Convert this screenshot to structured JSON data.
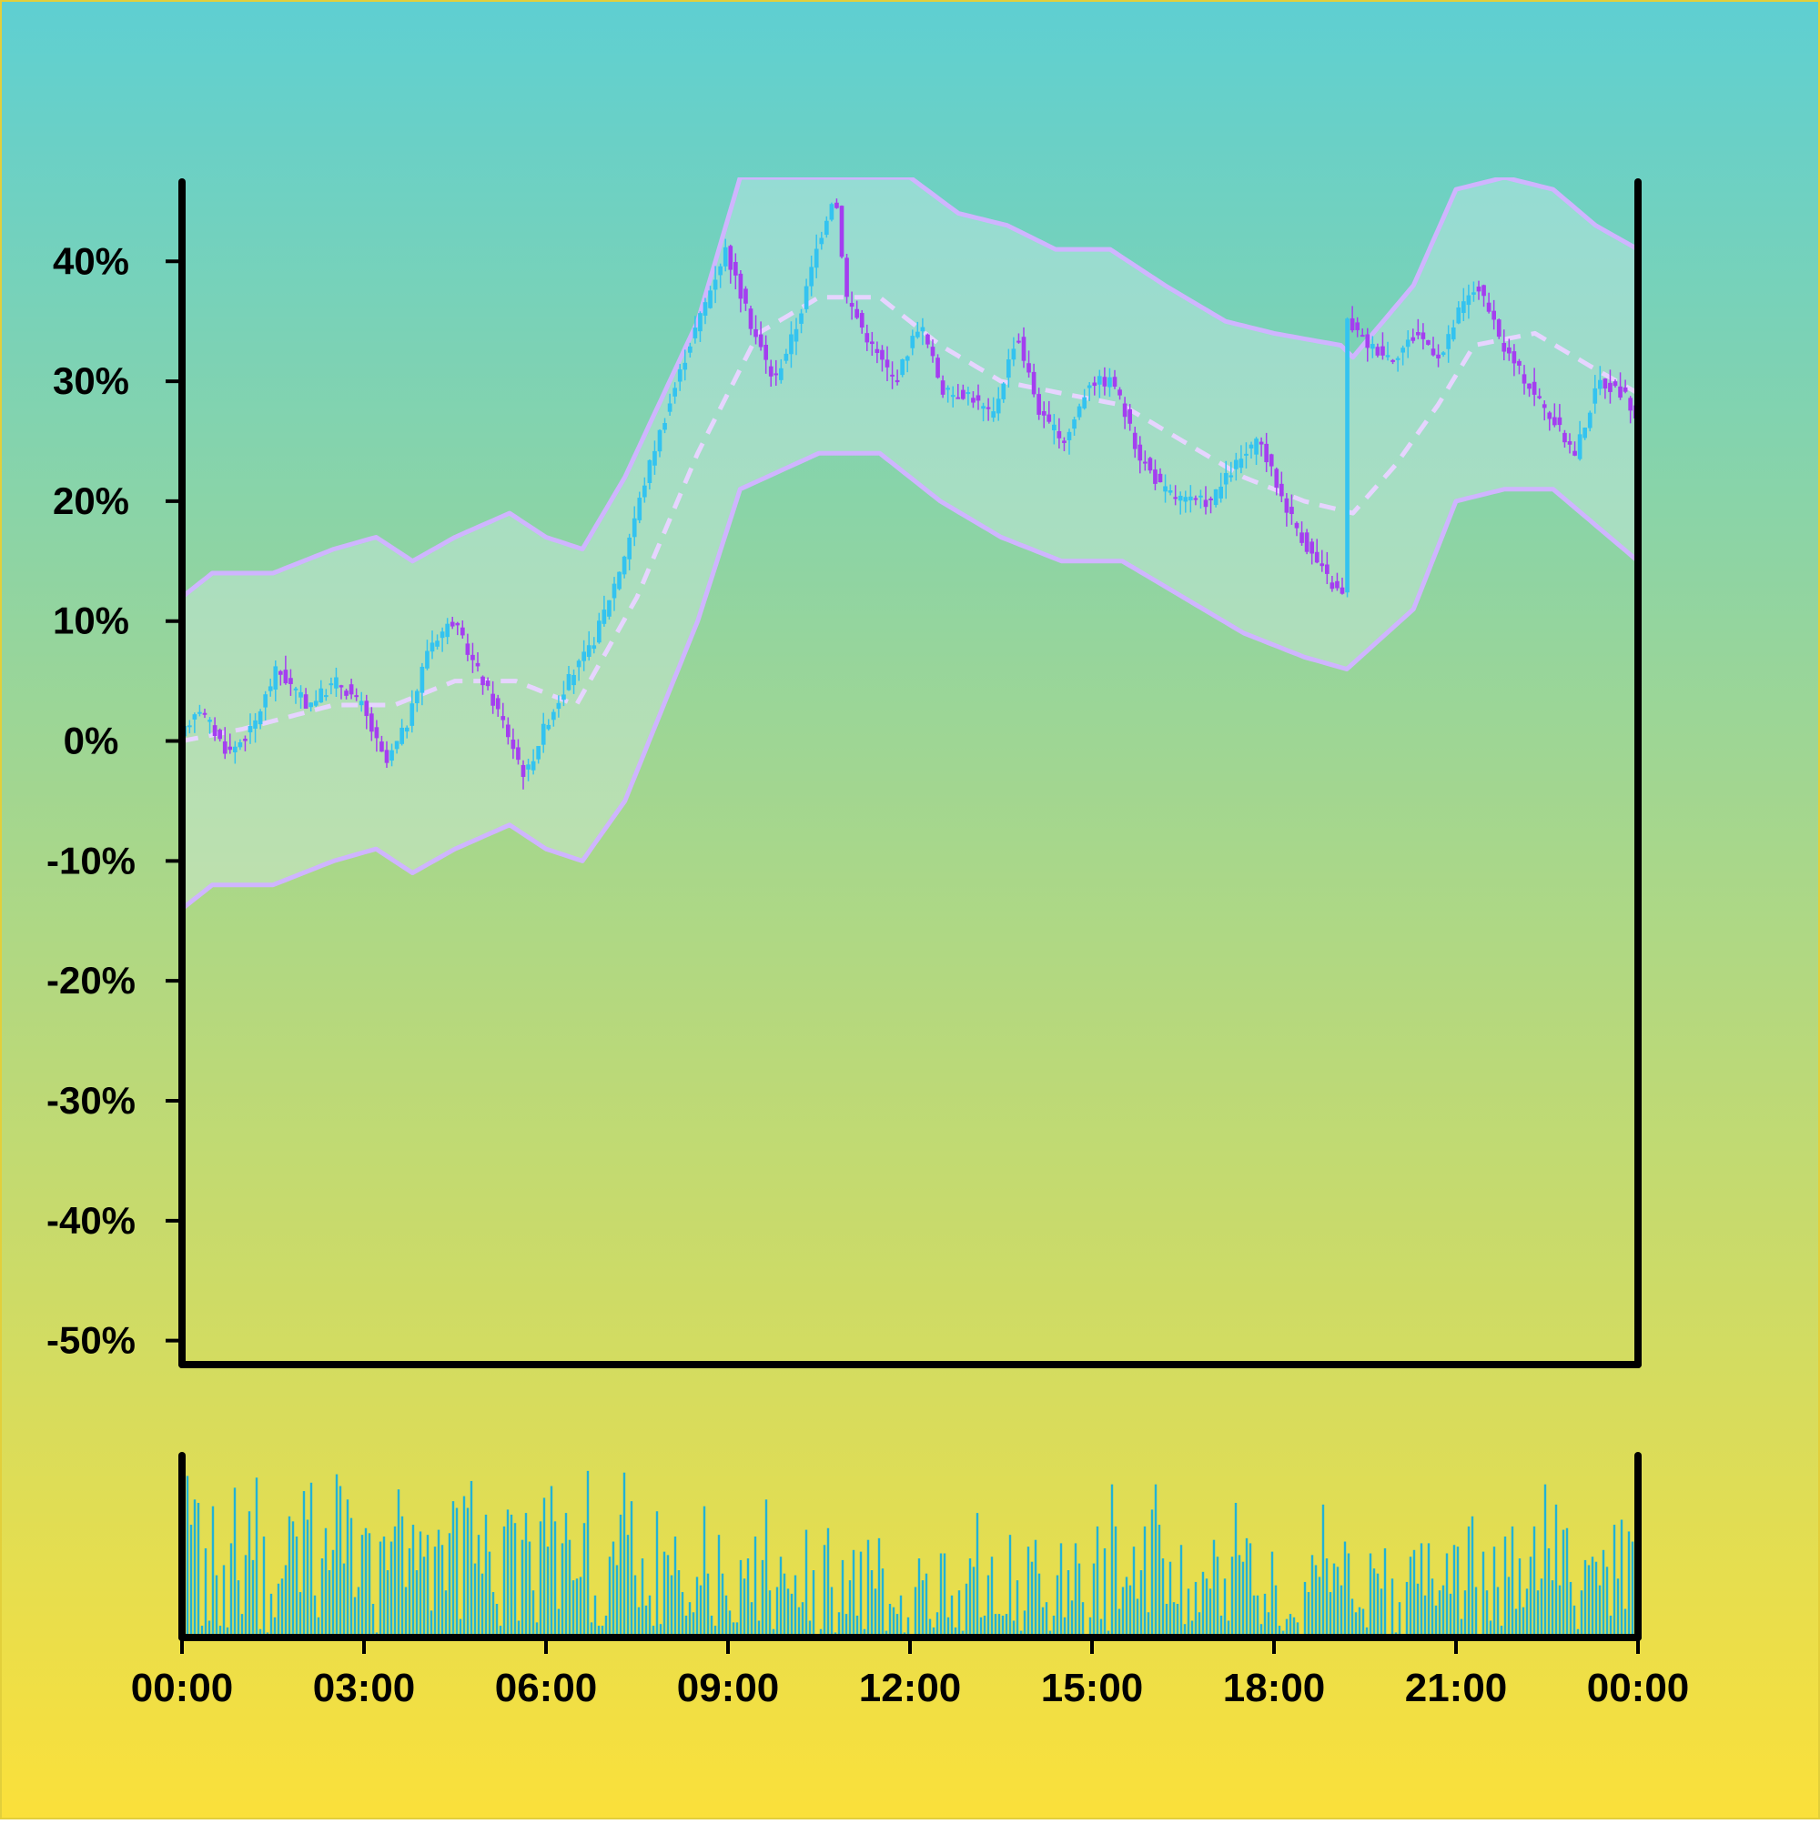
{
  "colors": {
    "background_top": "#5ecfd2",
    "background_bottom": "#fbe03a",
    "up_candle": "#33c3f0",
    "down_candle": "#a43ef0",
    "band_line": "#cfb5ff",
    "band_fill": "#dff1f4",
    "middle_line": "#e6d4ff",
    "volume_bar": "#21b2d6",
    "axis": "#000000",
    "border": "#e2cf3b"
  },
  "chart_data": {
    "type": "candlestick",
    "title": "",
    "xlabel": "",
    "ylabel": "",
    "ylim": [
      -0.52,
      0.47
    ],
    "x_range": [
      "00:00",
      "00:00 (+1 day)"
    ],
    "y_ticks": [
      {
        "value": 0.4,
        "label": "40%"
      },
      {
        "value": 0.3,
        "label": "30%"
      },
      {
        "value": 0.2,
        "label": "20%"
      },
      {
        "value": 0.1,
        "label": "10%"
      },
      {
        "value": 0.0,
        "label": "0%"
      },
      {
        "value": -0.1,
        "label": "-10%"
      },
      {
        "value": -0.2,
        "label": "-20%"
      },
      {
        "value": -0.3,
        "label": "-30%"
      },
      {
        "value": -0.4,
        "label": "-40%"
      },
      {
        "value": -0.5,
        "label": "-50%"
      }
    ],
    "x_ticks": [
      {
        "hour": 0,
        "label": "00:00"
      },
      {
        "hour": 3,
        "label": "03:00"
      },
      {
        "hour": 6,
        "label": "06:00"
      },
      {
        "hour": 9,
        "label": "09:00"
      },
      {
        "hour": 12,
        "label": "12:00"
      },
      {
        "hour": 15,
        "label": "15:00"
      },
      {
        "hour": 18,
        "label": "18:00"
      },
      {
        "hour": 21,
        "label": "21:00"
      },
      {
        "hour": 24,
        "label": "00:00"
      }
    ],
    "price_key_points": [
      [
        0.0,
        0.0
      ],
      [
        0.3,
        0.03
      ],
      [
        0.8,
        -0.01
      ],
      [
        1.2,
        0.01
      ],
      [
        1.6,
        0.06
      ],
      [
        2.1,
        0.03
      ],
      [
        2.6,
        0.05
      ],
      [
        3.0,
        0.03
      ],
      [
        3.4,
        -0.02
      ],
      [
        3.8,
        0.02
      ],
      [
        4.1,
        0.08
      ],
      [
        4.5,
        0.1
      ],
      [
        4.9,
        0.06
      ],
      [
        5.3,
        0.02
      ],
      [
        5.7,
        -0.03
      ],
      [
        6.0,
        0.01
      ],
      [
        6.4,
        0.05
      ],
      [
        6.8,
        0.08
      ],
      [
        7.3,
        0.15
      ],
      [
        7.8,
        0.24
      ],
      [
        8.4,
        0.33
      ],
      [
        9.0,
        0.41
      ],
      [
        9.4,
        0.35
      ],
      [
        9.8,
        0.3
      ],
      [
        10.2,
        0.35
      ],
      [
        10.5,
        0.41
      ],
      [
        10.8,
        0.46
      ],
      [
        11.0,
        0.37
      ],
      [
        11.4,
        0.33
      ],
      [
        11.8,
        0.3
      ],
      [
        12.2,
        0.35
      ],
      [
        12.6,
        0.29
      ],
      [
        13.0,
        0.29
      ],
      [
        13.4,
        0.27
      ],
      [
        13.8,
        0.34
      ],
      [
        14.2,
        0.27
      ],
      [
        14.6,
        0.25
      ],
      [
        15.0,
        0.3
      ],
      [
        15.4,
        0.3
      ],
      [
        15.8,
        0.24
      ],
      [
        16.2,
        0.21
      ],
      [
        16.6,
        0.2
      ],
      [
        17.0,
        0.2
      ],
      [
        17.4,
        0.23
      ],
      [
        17.8,
        0.25
      ],
      [
        18.2,
        0.2
      ],
      [
        18.6,
        0.16
      ],
      [
        19.0,
        0.13
      ],
      [
        19.2,
        0.12
      ],
      [
        19.25,
        0.35
      ],
      [
        19.6,
        0.33
      ],
      [
        20.0,
        0.32
      ],
      [
        20.4,
        0.34
      ],
      [
        20.8,
        0.32
      ],
      [
        21.1,
        0.36
      ],
      [
        21.4,
        0.38
      ],
      [
        21.8,
        0.33
      ],
      [
        22.2,
        0.3
      ],
      [
        22.6,
        0.27
      ],
      [
        23.0,
        0.24
      ],
      [
        23.4,
        0.3
      ],
      [
        23.8,
        0.29
      ],
      [
        24.0,
        0.27
      ]
    ],
    "bollinger": {
      "middle_key_points": [
        [
          0.0,
          0.0
        ],
        [
          1.0,
          0.01
        ],
        [
          2.5,
          0.03
        ],
        [
          3.5,
          0.03
        ],
        [
          4.5,
          0.05
        ],
        [
          5.5,
          0.05
        ],
        [
          6.5,
          0.03
        ],
        [
          7.5,
          0.12
        ],
        [
          8.5,
          0.24
        ],
        [
          9.5,
          0.34
        ],
        [
          10.5,
          0.37
        ],
        [
          11.5,
          0.37
        ],
        [
          12.5,
          0.33
        ],
        [
          13.5,
          0.3
        ],
        [
          14.5,
          0.29
        ],
        [
          15.5,
          0.28
        ],
        [
          16.5,
          0.25
        ],
        [
          17.5,
          0.22
        ],
        [
          18.5,
          0.2
        ],
        [
          19.3,
          0.19
        ],
        [
          20.0,
          0.23
        ],
        [
          20.7,
          0.28
        ],
        [
          21.3,
          0.33
        ],
        [
          22.3,
          0.34
        ],
        [
          23.3,
          0.31
        ],
        [
          24.0,
          0.29
        ]
      ],
      "upper_key_points": [
        [
          0.0,
          0.12
        ],
        [
          0.5,
          0.14
        ],
        [
          1.5,
          0.14
        ],
        [
          2.5,
          0.16
        ],
        [
          3.2,
          0.17
        ],
        [
          3.8,
          0.15
        ],
        [
          4.5,
          0.17
        ],
        [
          5.4,
          0.19
        ],
        [
          6.0,
          0.17
        ],
        [
          6.6,
          0.16
        ],
        [
          7.3,
          0.22
        ],
        [
          8.5,
          0.35
        ],
        [
          9.2,
          0.47
        ],
        [
          10.5,
          0.47
        ],
        [
          12.0,
          0.47
        ],
        [
          12.8,
          0.44
        ],
        [
          13.6,
          0.43
        ],
        [
          14.4,
          0.41
        ],
        [
          15.3,
          0.41
        ],
        [
          16.2,
          0.38
        ],
        [
          17.2,
          0.35
        ],
        [
          18.0,
          0.34
        ],
        [
          19.1,
          0.33
        ],
        [
          19.3,
          0.32
        ],
        [
          20.3,
          0.38
        ],
        [
          21.0,
          0.46
        ],
        [
          21.8,
          0.47
        ],
        [
          22.6,
          0.46
        ],
        [
          23.3,
          0.43
        ],
        [
          24.0,
          0.41
        ]
      ],
      "lower_key_points": [
        [
          0.0,
          -0.14
        ],
        [
          0.5,
          -0.12
        ],
        [
          1.5,
          -0.12
        ],
        [
          2.5,
          -0.1
        ],
        [
          3.2,
          -0.09
        ],
        [
          3.8,
          -0.11
        ],
        [
          4.5,
          -0.09
        ],
        [
          5.4,
          -0.07
        ],
        [
          6.0,
          -0.09
        ],
        [
          6.6,
          -0.1
        ],
        [
          7.3,
          -0.05
        ],
        [
          8.5,
          0.1
        ],
        [
          9.2,
          0.21
        ],
        [
          10.5,
          0.24
        ],
        [
          11.5,
          0.24
        ],
        [
          12.5,
          0.2
        ],
        [
          13.5,
          0.17
        ],
        [
          14.5,
          0.15
        ],
        [
          15.5,
          0.15
        ],
        [
          16.5,
          0.12
        ],
        [
          17.5,
          0.09
        ],
        [
          18.5,
          0.07
        ],
        [
          19.2,
          0.06
        ],
        [
          20.3,
          0.11
        ],
        [
          21.0,
          0.2
        ],
        [
          21.8,
          0.21
        ],
        [
          22.6,
          0.21
        ],
        [
          23.3,
          0.18
        ],
        [
          24.0,
          0.15
        ]
      ]
    },
    "volume": {
      "values": [
        0.21,
        0.96,
        0.67,
        0.82,
        0.8,
        0.07,
        0.53,
        0.1,
        0.78,
        0.37,
        0.07,
        0.43,
        0.06,
        0.56,
        0.89,
        0.34,
        0.14,
        0.49,
        0.75,
        0.46,
        0.95,
        0.05,
        0.6,
        0.03,
        0.26,
        0.12,
        0.32,
        0.35,
        0.43,
        0.72,
        0.69,
        0.6,
        0.27,
        0.87,
        0.7,
        0.92,
        0.25,
        0.12,
        0.47,
        0.65,
        0.4,
        0.52,
        0.97,
        0.9,
        0.44,
        0.82,
        0.71,
        0.24,
        0.3,
        0.61,
        0.65,
        0.62,
        0.2,
        0.03,
        0.57,
        0.6,
        0.4,
        0.57,
        0.66,
        0.88,
        0.72,
        0.3,
        0.53,
        0.67,
        0.4,
        0.63,
        0.48,
        0.61,
        0.16,
        0.54,
        0.64,
        0.55,
        0.28,
        0.62,
        0.81,
        0.77,
        0.11,
        0.84,
        0.77,
        0.93,
        0.44,
        0.61,
        0.38,
        0.73,
        0.51,
        0.27,
        0.2,
        0.07,
        0.66,
        0.76,
        0.73,
        0.68,
        0.1,
        0.58,
        0.74,
        0.57,
        0.28,
        0.09,
        0.69,
        0.83,
        0.54,
        0.9,
        0.69,
        0.17,
        0.56,
        0.74,
        0.58,
        0.34,
        0.35,
        0.36,
        0.68,
        0.99,
        0.09,
        0.25,
        0.07,
        0.07,
        0.13,
        0.48,
        0.57,
        0.43,
        0.73,
        0.98,
        0.61,
        0.81,
        0.37,
        0.18,
        0.47,
        0.19,
        0.25,
        0.07,
        0.75,
        0.08,
        0.51,
        0.49,
        0.37,
        0.6,
        0.4,
        0.27,
        0.13,
        0.21,
        0.15,
        0.36,
        0.31,
        0.78,
        0.38,
        0.13,
        0.07,
        0.61,
        0.38,
        0.25,
        0.16,
        0.09,
        0.09,
        0.46,
        0.35,
        0.47,
        0.21,
        0.6,
        0.1,
        0.46,
        0.82,
        0.28,
        0.05,
        0.3,
        0.48,
        0.38,
        0.29,
        0.26,
        0.37,
        0.18,
        0.21,
        0.64,
        0.1,
        0.4,
        0.02,
        0.05,
        0.55,
        0.65,
        0.3,
        0.03,
        0.15,
        0.46,
        0.14,
        0.34,
        0.52,
        0.13,
        0.51,
        0.05,
        0.58,
        0.4,
        0.29,
        0.59,
        0.41,
        0.04,
        0.2,
        0.18,
        0.14,
        0.25,
        0.03,
        0.12,
        0.02,
        0.3,
        0.47,
        0.34,
        0.38,
        0.11,
        0.06,
        0.15,
        0.5,
        0.5,
        0.12,
        0.25,
        0.06,
        0.28,
        0.04,
        0.32,
        0.47,
        0.42,
        0.74,
        0.12,
        0.13,
        0.37,
        0.48,
        0.14,
        0.14,
        0.13,
        0.14,
        0.61,
        0.1,
        0.34,
        0.04,
        0.16,
        0.54,
        0.45,
        0.58,
        0.38,
        0.18,
        0.21,
        0.04,
        0.13,
        0.37,
        0.56,
        0.12,
        0.4,
        0.22,
        0.56,
        0.44,
        0.21,
        0.01,
        0.12,
        0.44,
        0.66,
        0.11,
        0.53,
        0.04,
        0.91,
        0.66,
        0.17,
        0.3,
        0.36,
        0.31,
        0.54,
        0.23,
        0.4,
        0.66,
        0.15,
        0.76,
        0.91,
        0.67,
        0.47,
        0.2,
        0.45,
        0.21,
        0.2,
        0.55,
        0.08,
        0.29,
        0.1,
        0.33,
        0.15,
        0.39,
        0.35,
        0.29,
        0.58,
        0.48,
        0.13,
        0.35,
        0.1,
        0.48,
        0.8,
        0.49,
        0.45,
        0.59,
        0.56,
        0.25,
        0.25,
        0.08,
        0.26,
        0.15,
        0.51,
        0.31,
        0.07,
        0.04,
        0.11,
        0.14,
        0.12,
        0.09,
        0.02,
        0.33,
        0.27,
        0.49,
        0.43,
        0.36,
        0.79,
        0.47,
        0.27,
        0.44,
        0.42,
        0.31,
        0.57,
        0.5,
        0.23,
        0.15,
        0.18,
        0.17,
        0.06,
        0.5,
        0.41,
        0.38,
        0.29,
        0.53,
        0.01,
        0.35,
        0.03,
        0.21,
        0.02,
        0.33,
        0.48,
        0.52,
        0.32,
        0.56,
        0.25,
        0.56,
        0.35,
        0.19,
        0.28,
        0.31,
        0.5,
        0.26,
        0.55,
        0.54,
        0.11,
        0.28,
        0.66,
        0.72,
        0.3,
        0.02,
        0.51,
        0.28,
        0.1,
        0.54,
        0.3,
        0.07,
        0.6,
        0.36,
        0.66,
        0.17,
        0.47,
        0.18,
        0.29,
        0.48,
        0.66,
        0.28,
        0.35,
        0.91,
        0.53,
        0.34,
        0.79,
        0.31,
        0.64,
        0.65,
        0.33,
        0.19,
        0.05,
        0.28,
        0.46,
        0.43,
        0.48,
        0.45,
        0.31,
        0.52,
        0.42,
        0.13,
        0.67,
        0.35,
        0.7,
        0.17,
        0.63,
        0.57,
        0.88
      ]
    }
  }
}
